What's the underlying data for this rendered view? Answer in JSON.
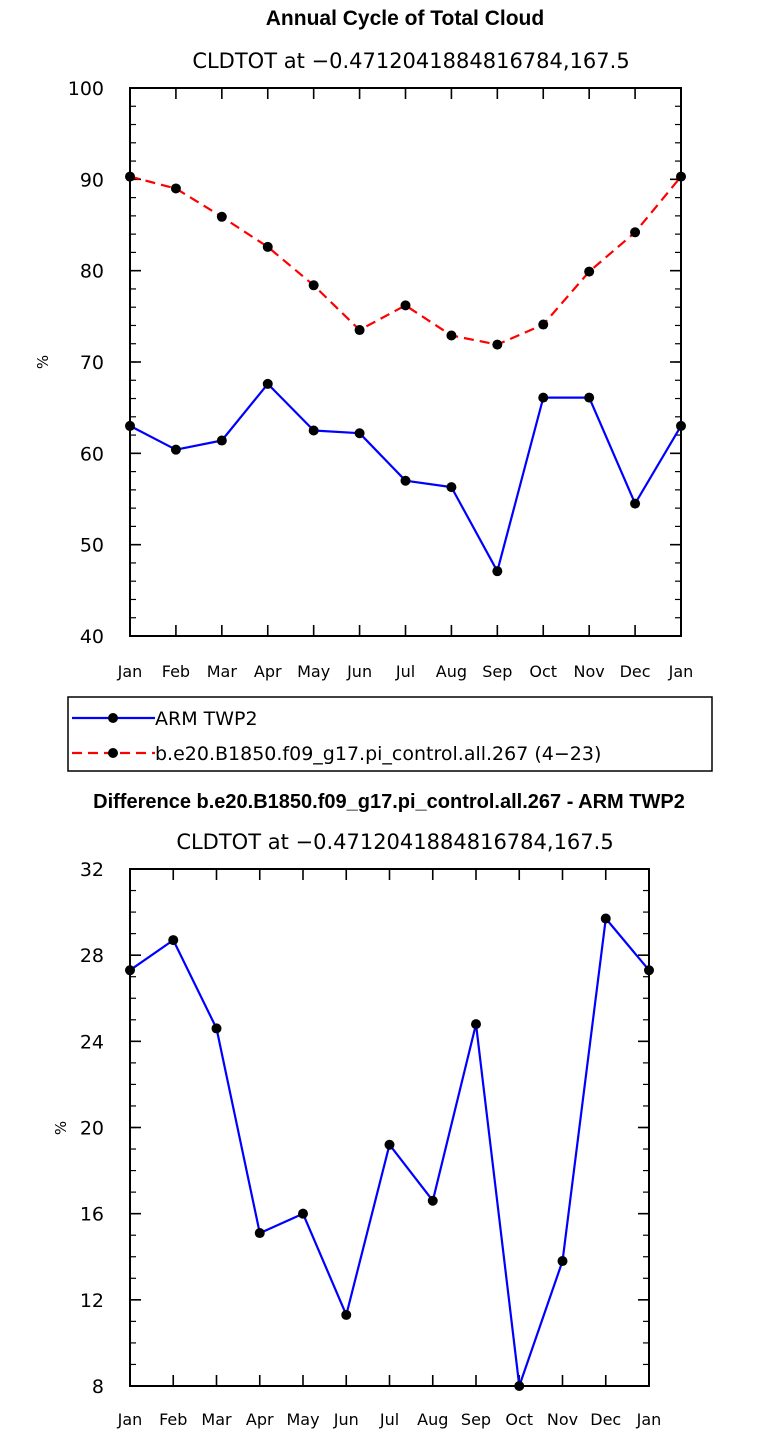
{
  "colors": {
    "model": "#ff0000",
    "obs": "#0000ff",
    "marker": "#000000"
  },
  "chart_data": [
    {
      "type": "line",
      "title": "Annual Cycle of Total Cloud",
      "subtitle": "CLDTOT at −0.4712041884816784,167.5",
      "xlabel": "",
      "ylabel": "%",
      "categories": [
        "Jan",
        "Feb",
        "Mar",
        "Apr",
        "May",
        "Jun",
        "Jul",
        "Aug",
        "Sep",
        "Oct",
        "Nov",
        "Dec",
        "Jan"
      ],
      "ylim": [
        40,
        100
      ],
      "yticks": [
        40,
        50,
        60,
        70,
        80,
        90,
        100
      ],
      "yminor_step": 2,
      "series": [
        {
          "name": "ARM TWP2",
          "style": "solid",
          "color": "#0000ff",
          "values": [
            63.0,
            60.4,
            61.4,
            67.6,
            62.5,
            62.2,
            57.0,
            56.3,
            47.1,
            66.1,
            66.1,
            54.5,
            63.0
          ]
        },
        {
          "name": "b.e20.B1850.f09_g17.pi_control.all.267 (4−23)",
          "style": "dashed",
          "color": "#ff0000",
          "values": [
            90.3,
            89.0,
            85.9,
            82.6,
            78.4,
            73.5,
            76.2,
            72.9,
            71.9,
            74.1,
            79.9,
            84.2,
            90.3
          ]
        }
      ],
      "legend": {
        "position": "below"
      }
    },
    {
      "type": "line",
      "title": "Difference b.e20.B1850.f09_g17.pi_control.all.267 - ARM TWP2",
      "subtitle": "CLDTOT at −0.4712041884816784,167.5",
      "xlabel": "",
      "ylabel": "%",
      "categories": [
        "Jan",
        "Feb",
        "Mar",
        "Apr",
        "May",
        "Jun",
        "Jul",
        "Aug",
        "Sep",
        "Oct",
        "Nov",
        "Dec",
        "Jan"
      ],
      "ylim": [
        8,
        32
      ],
      "yticks": [
        8,
        12,
        16,
        20,
        24,
        28,
        32
      ],
      "yminor_step": 1,
      "series": [
        {
          "name": "Difference",
          "style": "solid",
          "color": "#0000ff",
          "values": [
            27.3,
            28.7,
            24.6,
            15.1,
            16.0,
            11.3,
            19.2,
            16.6,
            24.8,
            8.0,
            13.8,
            29.7,
            27.3
          ]
        }
      ]
    }
  ]
}
